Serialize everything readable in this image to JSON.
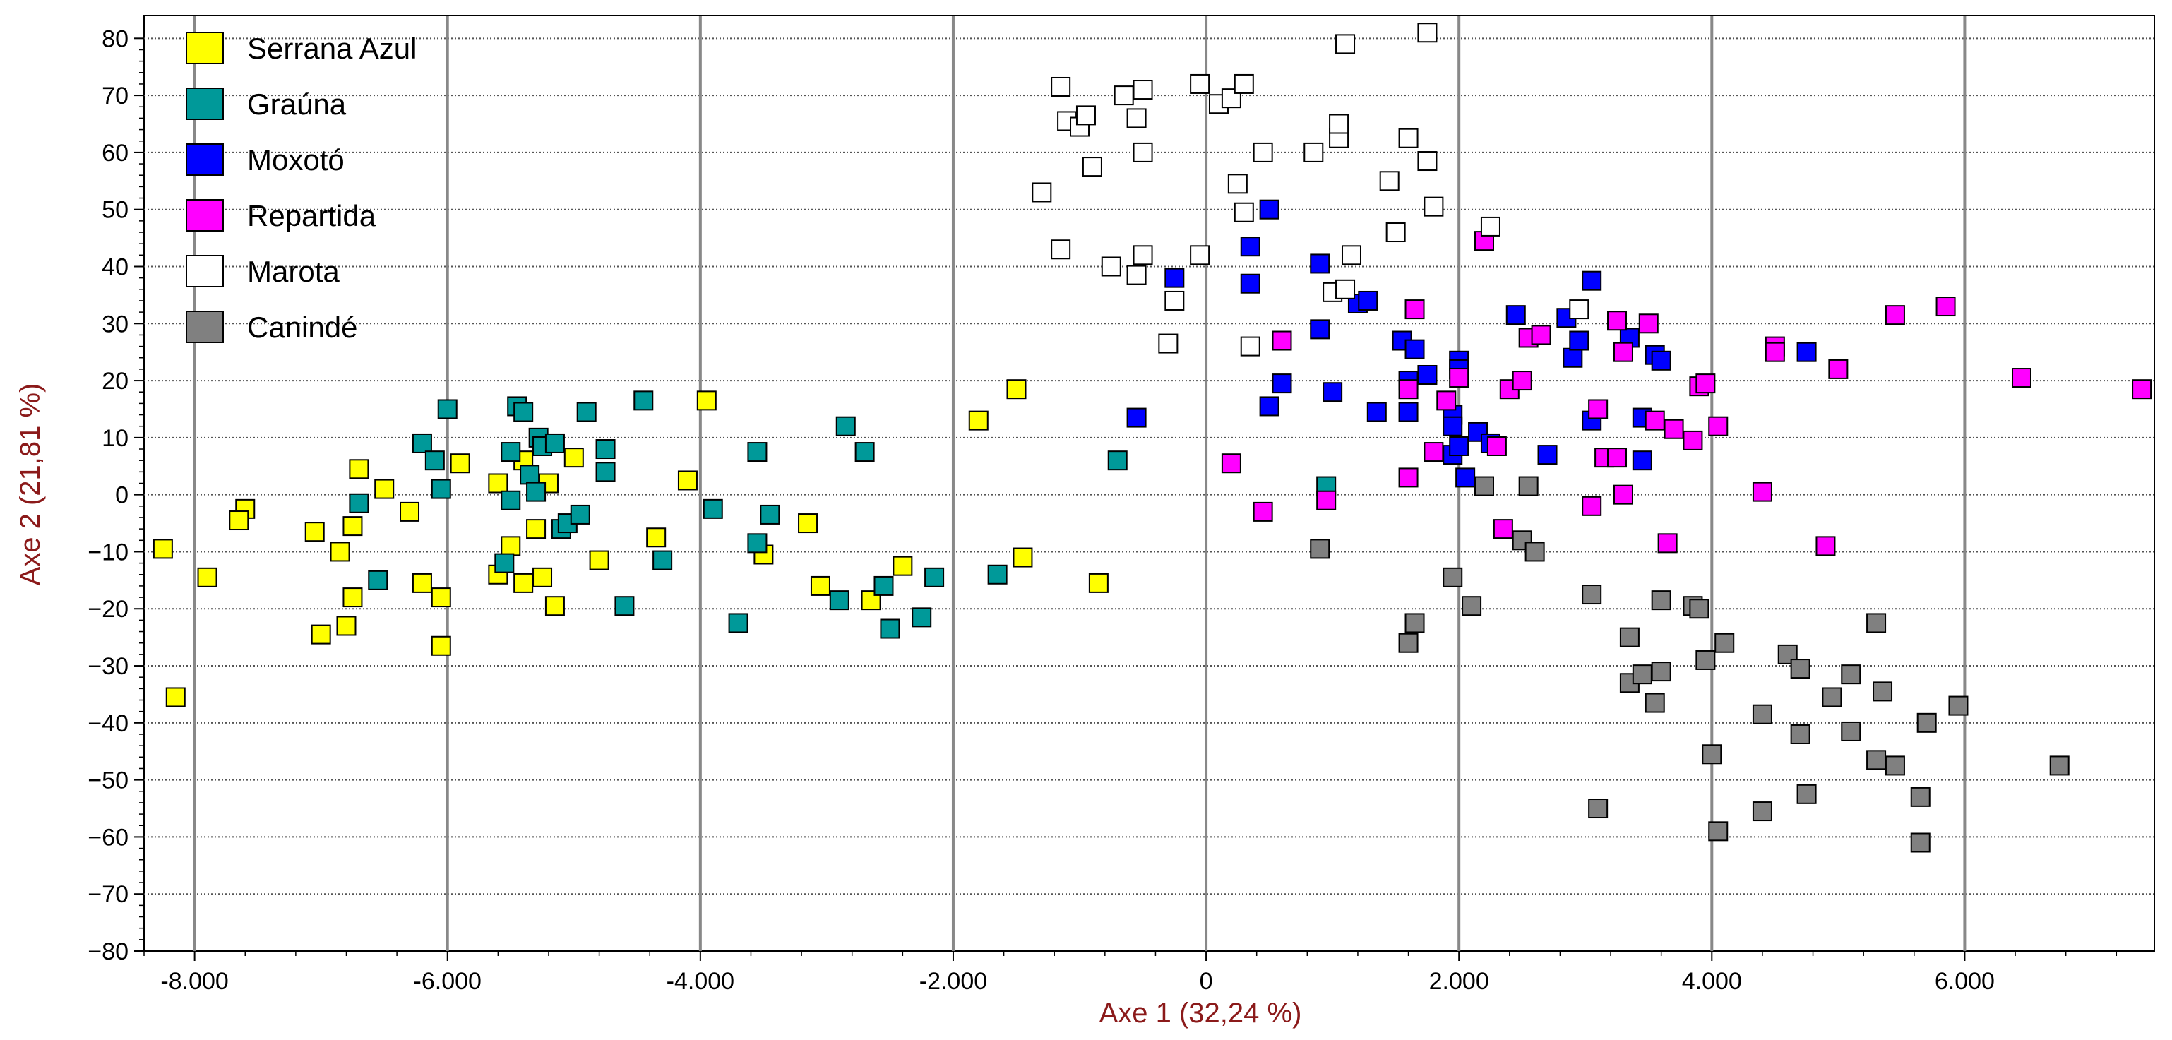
{
  "chart_data": {
    "type": "scatter",
    "title": "",
    "xlabel": "Axe 1 (32,24 %)",
    "ylabel": "Axe 2 (21,81 %)",
    "xlim": [
      -8.4,
      7.5
    ],
    "ylim": [
      -80,
      84
    ],
    "xticks": [
      -8,
      -6,
      -4,
      -2,
      0,
      2,
      4,
      6
    ],
    "xtick_labels": [
      "-8.000",
      "-6.000",
      "-4.000",
      "-2.000",
      "0",
      "2.000",
      "4.000",
      "6.000"
    ],
    "yticks": [
      -80,
      -70,
      -60,
      -50,
      -40,
      -30,
      -20,
      -10,
      0,
      10,
      20,
      30,
      40,
      50,
      60,
      70,
      80
    ],
    "ytick_labels": [
      "−80",
      "−70",
      "−60",
      "−50",
      "−40",
      "−30",
      "−20",
      "−10",
      "0",
      "10",
      "20",
      "30",
      "40",
      "50",
      "60",
      "70",
      "80"
    ],
    "grid": true,
    "legend_position": "top-left",
    "series": [
      {
        "name": "Serrana Azul",
        "color": "#ffff00",
        "points": [
          [
            -8.25,
            -9.5
          ],
          [
            -8.15,
            -35.5
          ],
          [
            -7.9,
            -14.5
          ],
          [
            -7.6,
            -2.5
          ],
          [
            -7.65,
            -4.5
          ],
          [
            -7.05,
            -6.5
          ],
          [
            -7.0,
            -24.5
          ],
          [
            -6.85,
            -10
          ],
          [
            -6.8,
            -23
          ],
          [
            -6.75,
            -5.5
          ],
          [
            -6.75,
            -18
          ],
          [
            -6.7,
            4.5
          ],
          [
            -6.5,
            1
          ],
          [
            -6.3,
            -3
          ],
          [
            -6.2,
            -15.5
          ],
          [
            -6.05,
            -18
          ],
          [
            -6.05,
            -26.5
          ],
          [
            -5.9,
            5.5
          ],
          [
            -5.6,
            -14
          ],
          [
            -5.6,
            2
          ],
          [
            -5.5,
            -9
          ],
          [
            -5.4,
            -15.5
          ],
          [
            -5.4,
            6
          ],
          [
            -5.3,
            -6
          ],
          [
            -5.25,
            -14.5
          ],
          [
            -5.2,
            2
          ],
          [
            -5.15,
            -19.5
          ],
          [
            -5.0,
            6.5
          ],
          [
            -4.8,
            -11.5
          ],
          [
            -4.35,
            -7.5
          ],
          [
            -4.1,
            2.5
          ],
          [
            -3.95,
            16.5
          ],
          [
            -3.5,
            -10.5
          ],
          [
            -3.15,
            -5
          ],
          [
            -3.05,
            -16
          ],
          [
            -2.65,
            -18.5
          ],
          [
            -2.4,
            -12.5
          ],
          [
            -1.8,
            13
          ],
          [
            -1.5,
            18.5
          ],
          [
            -1.45,
            -11
          ],
          [
            -0.85,
            -15.5
          ]
        ]
      },
      {
        "name": "Graúna",
        "color": "#009999",
        "points": [
          [
            -6.7,
            -1.5
          ],
          [
            -6.55,
            -15
          ],
          [
            -6.2,
            9
          ],
          [
            -6.1,
            6
          ],
          [
            -6.05,
            1
          ],
          [
            -6.0,
            15
          ],
          [
            -5.55,
            -12
          ],
          [
            -5.5,
            7.5
          ],
          [
            -5.5,
            -1
          ],
          [
            -5.45,
            15.5
          ],
          [
            -5.4,
            14.5
          ],
          [
            -5.35,
            3.5
          ],
          [
            -5.3,
            0.5
          ],
          [
            -5.28,
            10
          ],
          [
            -5.25,
            8.5
          ],
          [
            -5.15,
            9
          ],
          [
            -5.1,
            -6
          ],
          [
            -5.05,
            -5
          ],
          [
            -4.95,
            -3.5
          ],
          [
            -4.9,
            14.5
          ],
          [
            -4.75,
            8
          ],
          [
            -4.75,
            4
          ],
          [
            -4.6,
            -19.5
          ],
          [
            -4.45,
            16.5
          ],
          [
            -4.3,
            -11.5
          ],
          [
            -3.9,
            -2.5
          ],
          [
            -3.7,
            -22.5
          ],
          [
            -3.55,
            7.5
          ],
          [
            -3.55,
            -8.5
          ],
          [
            -3.45,
            -3.5
          ],
          [
            -2.85,
            12
          ],
          [
            -2.9,
            -18.5
          ],
          [
            -2.7,
            7.5
          ],
          [
            -2.55,
            -16
          ],
          [
            -2.5,
            -23.5
          ],
          [
            -2.25,
            -21.5
          ],
          [
            -2.15,
            -14.5
          ],
          [
            -1.65,
            -14
          ],
          [
            -0.7,
            6
          ],
          [
            0.95,
            1.5
          ]
        ]
      },
      {
        "name": "Moxotó",
        "color": "#0000ff",
        "points": [
          [
            -0.55,
            13.5
          ],
          [
            -0.25,
            38
          ],
          [
            0.35,
            43.5
          ],
          [
            0.35,
            37
          ],
          [
            0.5,
            50
          ],
          [
            0.5,
            15.5
          ],
          [
            0.6,
            19.5
          ],
          [
            0.9,
            40.5
          ],
          [
            0.9,
            29
          ],
          [
            1.0,
            18
          ],
          [
            1.2,
            33.5
          ],
          [
            1.28,
            34
          ],
          [
            1.35,
            14.5
          ],
          [
            1.55,
            27
          ],
          [
            1.6,
            20
          ],
          [
            1.6,
            14.5
          ],
          [
            1.65,
            25.5
          ],
          [
            1.75,
            21
          ],
          [
            1.95,
            14
          ],
          [
            1.95,
            12
          ],
          [
            1.95,
            7
          ],
          [
            2.0,
            23.5
          ],
          [
            2.0,
            22
          ],
          [
            2.0,
            8.5
          ],
          [
            2.05,
            3
          ],
          [
            2.15,
            11
          ],
          [
            2.25,
            9
          ],
          [
            2.45,
            31.5
          ],
          [
            2.7,
            7
          ],
          [
            2.85,
            31
          ],
          [
            2.9,
            24
          ],
          [
            2.95,
            27
          ],
          [
            3.05,
            37.5
          ],
          [
            3.05,
            13
          ],
          [
            3.35,
            27.5
          ],
          [
            3.45,
            13.5
          ],
          [
            3.45,
            6
          ],
          [
            3.55,
            24.5
          ],
          [
            3.6,
            23.5
          ],
          [
            4.75,
            25
          ]
        ]
      },
      {
        "name": "Repartida",
        "color": "#ff00ff",
        "points": [
          [
            0.2,
            5.5
          ],
          [
            0.45,
            -3
          ],
          [
            0.6,
            27
          ],
          [
            0.95,
            -1
          ],
          [
            1.6,
            18.5
          ],
          [
            1.6,
            3
          ],
          [
            1.65,
            32.5
          ],
          [
            1.8,
            7.5
          ],
          [
            1.9,
            16.5
          ],
          [
            2.0,
            20.5
          ],
          [
            2.2,
            44.5
          ],
          [
            2.3,
            8.5
          ],
          [
            2.35,
            -6
          ],
          [
            2.4,
            18.5
          ],
          [
            2.5,
            20
          ],
          [
            2.55,
            27.5
          ],
          [
            2.65,
            28
          ],
          [
            3.05,
            -2
          ],
          [
            3.1,
            15
          ],
          [
            3.15,
            6.5
          ],
          [
            3.25,
            30.5
          ],
          [
            3.25,
            6.5
          ],
          [
            3.3,
            25
          ],
          [
            3.3,
            0
          ],
          [
            3.5,
            30
          ],
          [
            3.55,
            13
          ],
          [
            3.65,
            -8.5
          ],
          [
            3.7,
            11.5
          ],
          [
            3.85,
            9.5
          ],
          [
            3.9,
            19
          ],
          [
            3.95,
            19.5
          ],
          [
            4.05,
            12
          ],
          [
            4.4,
            0.5
          ],
          [
            4.5,
            26
          ],
          [
            4.5,
            25
          ],
          [
            4.9,
            -9
          ],
          [
            5.0,
            22
          ],
          [
            5.45,
            31.5
          ],
          [
            5.85,
            33
          ],
          [
            6.45,
            20.5
          ],
          [
            7.4,
            18.5
          ]
        ]
      },
      {
        "name": "Marota",
        "color": "#ffffff",
        "points": [
          [
            -1.3,
            53
          ],
          [
            -1.15,
            71.5
          ],
          [
            -1.15,
            43
          ],
          [
            -1.1,
            65.5
          ],
          [
            -1.0,
            64.5
          ],
          [
            -0.95,
            66.5
          ],
          [
            -0.9,
            57.5
          ],
          [
            -0.75,
            40
          ],
          [
            -0.65,
            70
          ],
          [
            -0.55,
            66
          ],
          [
            -0.55,
            38.5
          ],
          [
            -0.5,
            42
          ],
          [
            -0.5,
            71
          ],
          [
            -0.5,
            60
          ],
          [
            -0.3,
            26.5
          ],
          [
            -0.25,
            34
          ],
          [
            -0.05,
            42
          ],
          [
            -0.05,
            72
          ],
          [
            0.1,
            68.5
          ],
          [
            0.2,
            69.5
          ],
          [
            0.25,
            54.5
          ],
          [
            0.3,
            72
          ],
          [
            0.3,
            49.5
          ],
          [
            0.35,
            26
          ],
          [
            0.45,
            60
          ],
          [
            0.85,
            60
          ],
          [
            1.0,
            35.5
          ],
          [
            1.05,
            62.5
          ],
          [
            1.05,
            65
          ],
          [
            1.1,
            79
          ],
          [
            1.1,
            36
          ],
          [
            1.15,
            42
          ],
          [
            1.45,
            55
          ],
          [
            1.5,
            46
          ],
          [
            1.6,
            62.5
          ],
          [
            1.75,
            58.5
          ],
          [
            1.75,
            81
          ],
          [
            1.8,
            50.5
          ],
          [
            2.25,
            47
          ],
          [
            2.95,
            32.5
          ]
        ]
      },
      {
        "name": "Canindé",
        "color": "#808080",
        "points": [
          [
            0.9,
            -9.5
          ],
          [
            1.6,
            -26
          ],
          [
            1.65,
            -22.5
          ],
          [
            1.95,
            -14.5
          ],
          [
            2.1,
            -19.5
          ],
          [
            2.2,
            1.5
          ],
          [
            2.5,
            -8
          ],
          [
            2.55,
            1.5
          ],
          [
            2.6,
            -10
          ],
          [
            3.05,
            -17.5
          ],
          [
            3.1,
            -55
          ],
          [
            3.35,
            -25
          ],
          [
            3.35,
            -33
          ],
          [
            3.45,
            -31.5
          ],
          [
            3.55,
            -36.5
          ],
          [
            3.6,
            -31
          ],
          [
            3.6,
            -18.5
          ],
          [
            3.85,
            -19.5
          ],
          [
            3.9,
            -20
          ],
          [
            3.95,
            -29
          ],
          [
            4.0,
            -45.5
          ],
          [
            4.05,
            -59
          ],
          [
            4.1,
            -26
          ],
          [
            4.4,
            -38.5
          ],
          [
            4.4,
            -55.5
          ],
          [
            4.6,
            -28
          ],
          [
            4.7,
            -30.5
          ],
          [
            4.7,
            -42
          ],
          [
            4.75,
            -52.5
          ],
          [
            4.95,
            -35.5
          ],
          [
            5.1,
            -31.5
          ],
          [
            5.1,
            -41.5
          ],
          [
            5.3,
            -46.5
          ],
          [
            5.3,
            -22.5
          ],
          [
            5.35,
            -34.5
          ],
          [
            5.45,
            -47.5
          ],
          [
            5.65,
            -53
          ],
          [
            5.65,
            -61
          ],
          [
            5.7,
            -40
          ],
          [
            5.95,
            -37
          ],
          [
            6.75,
            -47.5
          ]
        ]
      }
    ]
  }
}
